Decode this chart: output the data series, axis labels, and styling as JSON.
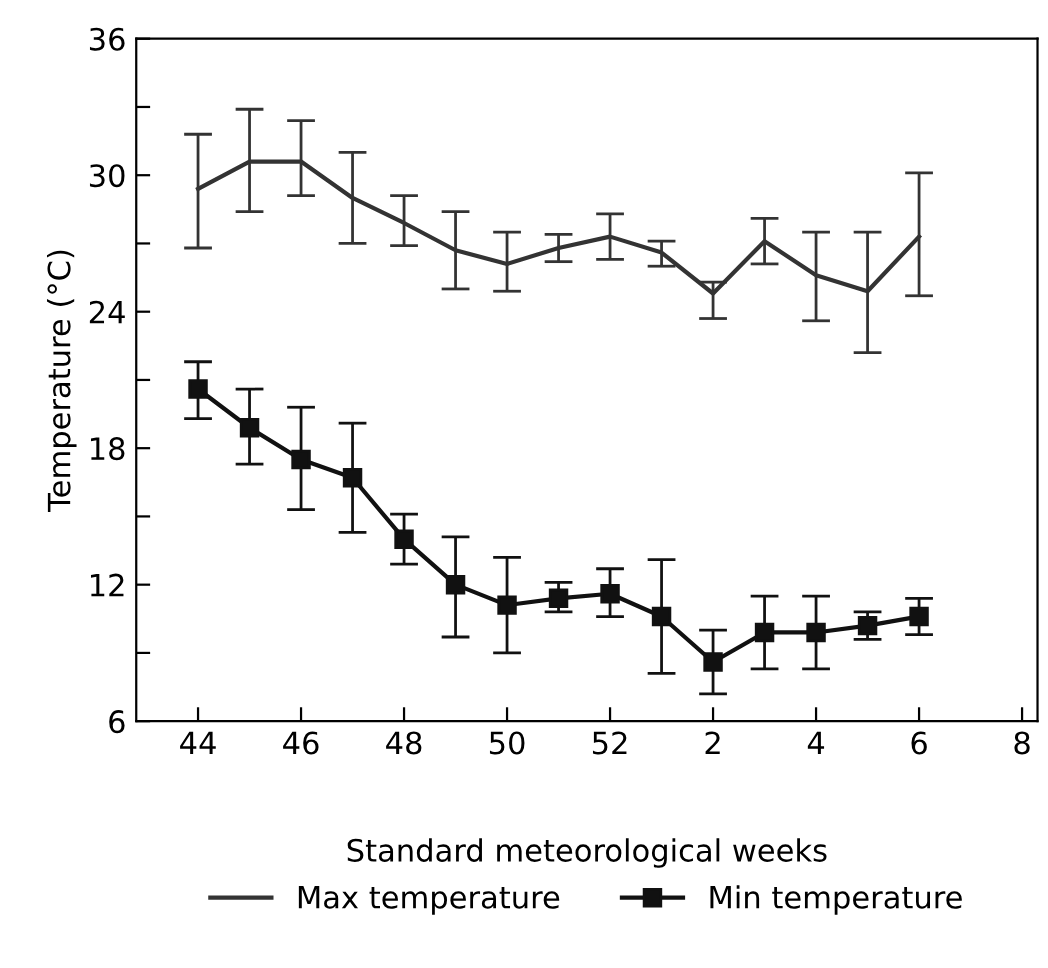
{
  "chart_data": {
    "type": "line",
    "xlabel": "Standard meteorological weeks",
    "ylabel": "Temperature (°C)",
    "categories": [
      "44",
      null,
      "46",
      null,
      "48",
      null,
      "50",
      null,
      "52",
      null,
      "2",
      null,
      "4",
      null,
      "6",
      null,
      "8"
    ],
    "ylim": [
      6,
      36
    ],
    "yticks": [
      6,
      {
        "value": 9,
        "label": null
      },
      12,
      {
        "value": 15,
        "label": null
      },
      18,
      {
        "value": 21,
        "label": null
      },
      24,
      {
        "value": 27,
        "label": null
      },
      30,
      {
        "value": 33,
        "label": null
      },
      36
    ],
    "grid": false,
    "legend": "bottom",
    "line_style": "solid",
    "series": [
      {
        "name": "Max temperature",
        "color": "#333333",
        "marker": "none",
        "values": [
          29.4,
          30.6,
          30.6,
          29.0,
          27.9,
          26.7,
          26.1,
          26.8,
          27.3,
          26.6,
          24.8,
          27.1,
          25.6,
          24.9,
          27.3,
          null,
          null
        ],
        "errors": [
          [
            26.8,
            31.8
          ],
          [
            28.4,
            32.9
          ],
          [
            29.1,
            32.4
          ],
          [
            27.0,
            31.0
          ],
          [
            26.9,
            29.1
          ],
          [
            25.0,
            28.4
          ],
          [
            24.9,
            27.5
          ],
          [
            26.2,
            27.4
          ],
          [
            26.3,
            28.3
          ],
          [
            26.0,
            27.1
          ],
          [
            23.7,
            25.3
          ],
          [
            26.1,
            28.1
          ],
          [
            23.6,
            27.5
          ],
          [
            22.2,
            27.5
          ],
          [
            24.7,
            30.1
          ],
          null,
          null
        ]
      },
      {
        "name": "Min temperature",
        "color": "#111111",
        "marker": "square",
        "values": [
          20.6,
          18.9,
          17.5,
          16.7,
          14.0,
          12.0,
          11.1,
          11.4,
          11.6,
          10.6,
          8.6,
          9.9,
          9.9,
          10.2,
          10.6,
          null,
          null
        ],
        "errors": [
          [
            19.3,
            21.8
          ],
          [
            17.3,
            20.6
          ],
          [
            15.3,
            19.8
          ],
          [
            14.3,
            19.1
          ],
          [
            12.9,
            15.1
          ],
          [
            9.7,
            14.1
          ],
          [
            9.0,
            13.2
          ],
          [
            10.8,
            12.1
          ],
          [
            10.6,
            12.7
          ],
          [
            8.1,
            13.1
          ],
          [
            7.2,
            10.0
          ],
          [
            8.3,
            11.5
          ],
          [
            8.3,
            11.5
          ],
          [
            9.6,
            10.8
          ],
          [
            9.8,
            11.4
          ],
          null,
          null
        ]
      }
    ]
  }
}
